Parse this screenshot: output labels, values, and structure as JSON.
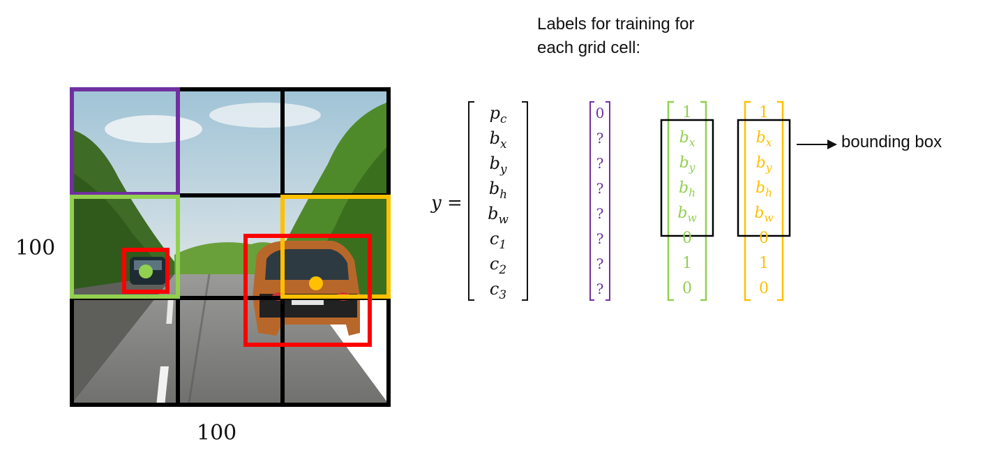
{
  "figure": {
    "title_lines": [
      "Labels for training for",
      "each grid cell:"
    ],
    "image_dims": {
      "side": "100",
      "bottom": "100"
    },
    "grid": {
      "rows": 3,
      "cols": 3
    },
    "colors": {
      "purple": "#7030a0",
      "green": "#92d050",
      "orange": "#ffc000",
      "red": "#ff0000",
      "black": "#000000"
    },
    "y_equals": "y =",
    "label_vector": {
      "entries": [
        "p",
        "b",
        "b",
        "b",
        "b",
        "c",
        "c",
        "c"
      ],
      "subs": [
        "c",
        "x",
        "y",
        "h",
        "w",
        "1",
        "2",
        "3"
      ]
    },
    "purple_vector": [
      "0",
      "?",
      "?",
      "?",
      "?",
      "?",
      "?",
      "?"
    ],
    "green_vector": {
      "top": "1",
      "box": [
        [
          "b",
          "x"
        ],
        [
          "b",
          "y"
        ],
        [
          "b",
          "h"
        ],
        [
          "b",
          "w"
        ]
      ],
      "rest": [
        "0",
        "1",
        "0"
      ]
    },
    "orange_vector": {
      "top": "1",
      "box": [
        [
          "b",
          "x"
        ],
        [
          "b",
          "y"
        ],
        [
          "b",
          "h"
        ],
        [
          "b",
          "w"
        ]
      ],
      "rest": [
        "0",
        "1",
        "0"
      ]
    },
    "bounding_box_label": "bounding box"
  }
}
